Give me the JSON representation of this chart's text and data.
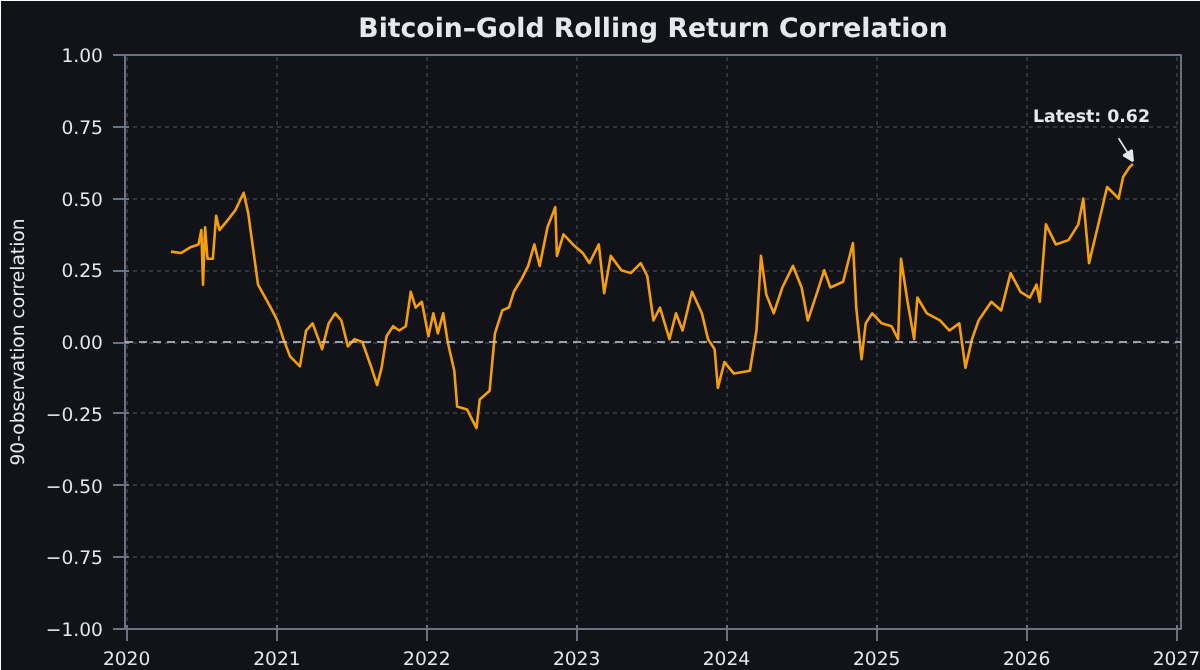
{
  "chart_data": {
    "type": "line",
    "title": "Bitcoin–Gold Rolling Return Correlation",
    "ylabel": "90-observation correlation",
    "x": [
      "2020-04-18",
      "2020-05-12",
      "2020-06-04",
      "2020-06-24",
      "2020-07-01",
      "2020-07-05",
      "2020-07-10",
      "2020-07-16",
      "2020-07-29",
      "2020-08-06",
      "2020-08-14",
      "2020-09-06",
      "2020-09-22",
      "2020-10-12",
      "2020-10-23",
      "2020-11-16",
      "2020-12-17",
      "2021-01-02",
      "2021-01-17",
      "2021-02-02",
      "2021-02-26",
      "2021-03-13",
      "2021-03-29",
      "2021-04-21",
      "2021-05-07",
      "2021-05-23",
      "2021-06-07",
      "2021-06-23",
      "2021-07-09",
      "2021-07-28",
      "2021-08-17",
      "2021-09-02",
      "2021-09-13",
      "2021-09-25",
      "2021-10-11",
      "2021-10-26",
      "2021-11-11",
      "2021-11-23",
      "2021-12-05",
      "2021-12-20",
      "2022-01-05",
      "2022-01-17",
      "2022-01-28",
      "2022-02-10",
      "2022-02-21",
      "2022-03-09",
      "2022-03-16",
      "2022-04-09",
      "2022-05-02",
      "2022-05-10",
      "2022-06-03",
      "2022-06-16",
      "2022-07-04",
      "2022-07-20",
      "2022-08-01",
      "2022-08-20",
      "2022-09-05",
      "2022-09-20",
      "2022-10-03",
      "2022-10-22",
      "2022-11-10",
      "2022-11-14",
      "2022-11-30",
      "2022-12-23",
      "2023-01-16",
      "2023-02-01",
      "2023-02-24",
      "2023-03-09",
      "2023-03-25",
      "2023-04-20",
      "2023-05-13",
      "2023-06-06",
      "2023-06-22",
      "2023-07-07",
      "2023-07-23",
      "2023-08-15",
      "2023-08-31",
      "2023-09-16",
      "2023-10-09",
      "2023-11-02",
      "2023-11-17",
      "2023-12-03",
      "2023-12-11",
      "2023-12-27",
      "2024-01-19",
      "2024-02-27",
      "2024-03-14",
      "2024-03-25",
      "2024-04-07",
      "2024-04-25",
      "2024-05-16",
      "2024-06-11",
      "2024-07-02",
      "2024-07-17",
      "2024-08-07",
      "2024-08-26",
      "2024-09-10",
      "2024-10-11",
      "2024-11-04",
      "2024-11-12",
      "2024-11-25",
      "2024-12-05",
      "2024-12-21",
      "2025-01-13",
      "2025-02-06",
      "2025-02-22",
      "2025-03-01",
      "2025-03-17",
      "2025-04-02",
      "2025-04-10",
      "2025-05-03",
      "2025-06-04",
      "2025-06-27",
      "2025-07-21",
      "2025-08-05",
      "2025-08-21",
      "2025-09-06",
      "2025-10-07",
      "2025-10-31",
      "2025-11-23",
      "2025-12-17",
      "2026-01-09",
      "2026-01-25",
      "2026-02-02",
      "2026-02-17",
      "2026-03-13",
      "2026-04-13",
      "2026-05-07",
      "2026-05-19",
      "2026-06-02",
      "2026-06-23",
      "2026-07-16",
      "2026-08-13",
      "2026-08-24",
      "2026-09-09",
      "2026-09-17"
    ],
    "series": [
      {
        "color": "#f59e0b",
        "values": [
          0.315,
          0.31,
          0.33,
          0.34,
          0.39,
          0.2,
          0.4,
          0.29,
          0.29,
          0.44,
          0.39,
          0.43,
          0.46,
          0.52,
          0.45,
          0.2,
          0.12,
          0.075,
          0.01,
          -0.05,
          -0.085,
          0.04,
          0.065,
          -0.025,
          0.065,
          0.1,
          0.075,
          -0.015,
          0.01,
          0.0,
          -0.08,
          -0.15,
          -0.09,
          0.02,
          0.055,
          0.04,
          0.055,
          0.175,
          0.12,
          0.14,
          0.02,
          0.1,
          0.03,
          0.1,
          0.0,
          -0.1,
          -0.225,
          -0.235,
          -0.3,
          -0.2,
          -0.17,
          0.03,
          0.11,
          0.12,
          0.175,
          0.22,
          0.265,
          0.34,
          0.265,
          0.4,
          0.47,
          0.3,
          0.375,
          0.34,
          0.31,
          0.275,
          0.34,
          0.17,
          0.3,
          0.25,
          0.24,
          0.275,
          0.23,
          0.075,
          0.12,
          0.01,
          0.1,
          0.04,
          0.175,
          0.1,
          0.01,
          -0.025,
          -0.16,
          -0.07,
          -0.11,
          -0.1,
          0.04,
          0.3,
          0.165,
          0.1,
          0.19,
          0.265,
          0.19,
          0.075,
          0.165,
          0.25,
          0.19,
          0.21,
          0.345,
          0.12,
          -0.06,
          0.065,
          0.1,
          0.065,
          0.055,
          0.01,
          0.29,
          0.14,
          0.01,
          0.155,
          0.1,
          0.075,
          0.04,
          0.065,
          -0.09,
          0.01,
          0.075,
          0.14,
          0.11,
          0.24,
          0.175,
          0.155,
          0.2,
          0.14,
          0.41,
          0.34,
          0.355,
          0.41,
          0.5,
          0.275,
          0.4,
          0.54,
          0.5,
          0.575,
          0.61,
          0.62
        ]
      }
    ],
    "xlim": [
      "2019-12-28",
      "2027-01-12"
    ],
    "xticks": [
      {
        "value": "2020",
        "label": "2020"
      },
      {
        "value": "2021",
        "label": "2021"
      },
      {
        "value": "2022",
        "label": "2022"
      },
      {
        "value": "2023",
        "label": "2023"
      },
      {
        "value": "2024",
        "label": "2024"
      },
      {
        "value": "2025",
        "label": "2025"
      },
      {
        "value": "2026",
        "label": "2026"
      },
      {
        "value": "2027",
        "label": "2027"
      }
    ],
    "ylim": [
      -1.0,
      1.0
    ],
    "yticks": [
      {
        "value": -1.0,
        "label": "−1.00"
      },
      {
        "value": -0.75,
        "label": "−0.75"
      },
      {
        "value": -0.5,
        "label": "−0.50"
      },
      {
        "value": -0.25,
        "label": "−0.25"
      },
      {
        "value": 0.0,
        "label": "0.00"
      },
      {
        "value": 0.25,
        "label": "0.25"
      },
      {
        "value": 0.5,
        "label": "0.50"
      },
      {
        "value": 0.75,
        "label": "0.75"
      },
      {
        "value": 1.0,
        "label": "1.00"
      }
    ],
    "ref_lines": [
      {
        "axis": "y",
        "value": 0.0,
        "color": "#c8ccd4",
        "line_style": "dashed"
      }
    ],
    "annotations": [
      {
        "text": "Latest: 0.62",
        "x": "2026-09-17",
        "y": 0.62
      }
    ],
    "grid": true,
    "line_style": "solid",
    "marker": "none"
  }
}
